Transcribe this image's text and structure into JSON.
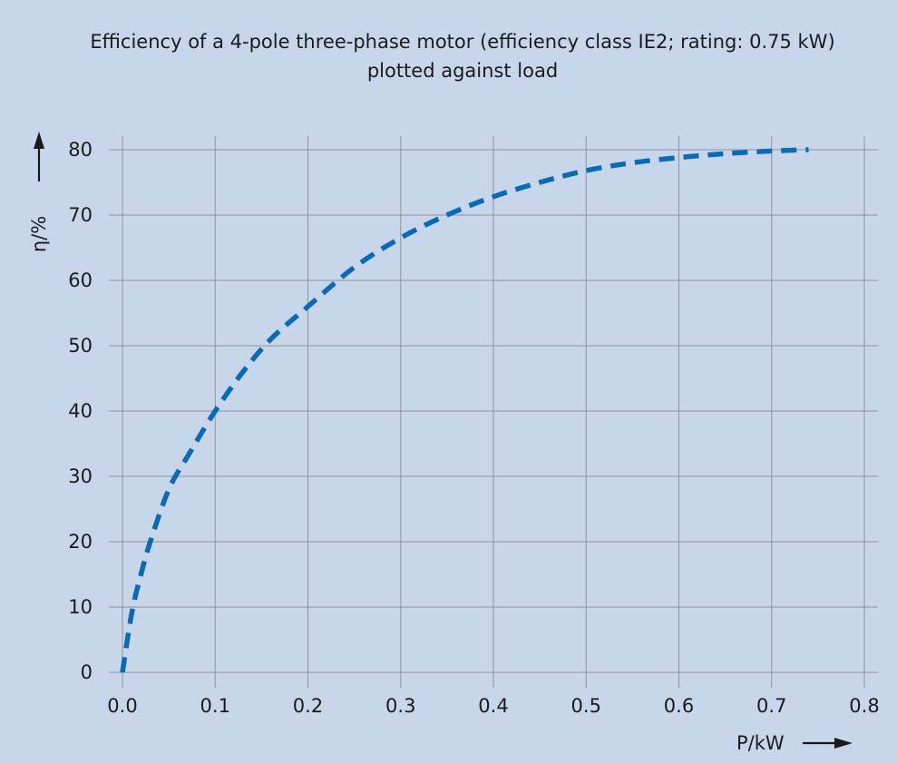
{
  "chart_data": {
    "type": "line",
    "title": [
      "Efficiency of a 4-pole three-phase motor (efficiency class IE2; rating: 0.75 kW)",
      "plotted against load"
    ],
    "xlabel": "P/kW",
    "ylabel": "η/%",
    "xlim": [
      0.0,
      0.8
    ],
    "ylim": [
      0,
      80
    ],
    "x_ticks": [
      "0.0",
      "0.1",
      "0.2",
      "0.3",
      "0.4",
      "0.5",
      "0.6",
      "0.7",
      "0.8"
    ],
    "y_ticks": [
      "0",
      "10",
      "20",
      "30",
      "40",
      "50",
      "60",
      "70",
      "80"
    ],
    "grid": true,
    "series": [
      {
        "line_style": "dashed",
        "color": "#0a6ab4",
        "x": [
          0.0,
          0.01,
          0.02,
          0.03,
          0.05,
          0.07,
          0.1,
          0.13,
          0.16,
          0.2,
          0.25,
          0.3,
          0.35,
          0.4,
          0.45,
          0.5,
          0.55,
          0.6,
          0.65,
          0.7,
          0.74
        ],
        "y": [
          0,
          9,
          15,
          20,
          28,
          33,
          40,
          46,
          51,
          56,
          62,
          66.5,
          70,
          72.8,
          75,
          76.8,
          78,
          78.8,
          79.4,
          79.8,
          80
        ]
      }
    ]
  },
  "colors": {
    "background": "#c8d6ec",
    "grid": "#8e939b",
    "series": "#0a6ab4",
    "axis": "#1a1a1a"
  }
}
